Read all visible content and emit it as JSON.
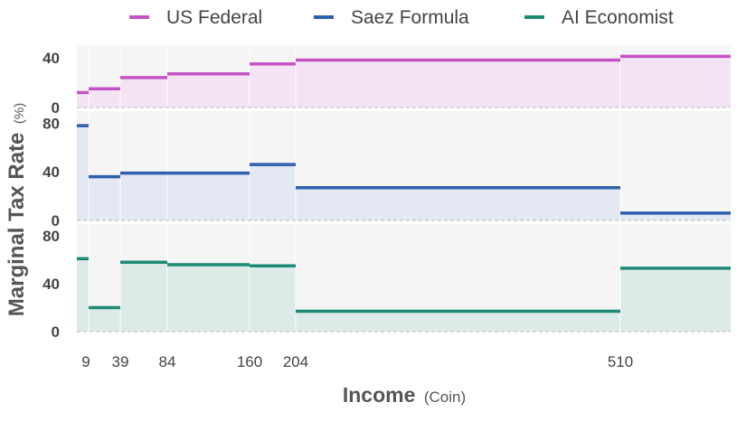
{
  "chart_data": {
    "type": "step",
    "xlabel": "Income",
    "xlabel_unit": "(Coin)",
    "ylabel": "Marginal Tax Rate",
    "ylabel_unit": "(%)",
    "bracket_edges": [
      0,
      9,
      39,
      84,
      160,
      204,
      510
    ],
    "x_tick_labels": [
      "9",
      "39",
      "84",
      "160",
      "204",
      "510"
    ],
    "legend_position": "top",
    "grid": false,
    "series": [
      {
        "name": "US Federal",
        "color": "#c553c5",
        "fill": "#f3e3f3",
        "ylim": [
          0,
          50
        ],
        "y_ticks": [
          0,
          40
        ],
        "values": [
          12,
          15,
          24,
          27,
          35,
          38,
          41
        ]
      },
      {
        "name": "Saez Formula",
        "color": "#2f5fae",
        "fill": "#e3e8f3",
        "ylim": [
          0,
          90
        ],
        "y_ticks": [
          0,
          40,
          80
        ],
        "values": [
          78,
          36,
          39,
          39,
          46,
          27,
          6
        ]
      },
      {
        "name": "AI Economist",
        "color": "#1c8a74",
        "fill": "#ddebe8",
        "ylim": [
          0,
          90
        ],
        "y_ticks": [
          0,
          40,
          80
        ],
        "values": [
          61,
          20,
          58,
          56,
          55,
          17,
          53
        ]
      }
    ]
  }
}
